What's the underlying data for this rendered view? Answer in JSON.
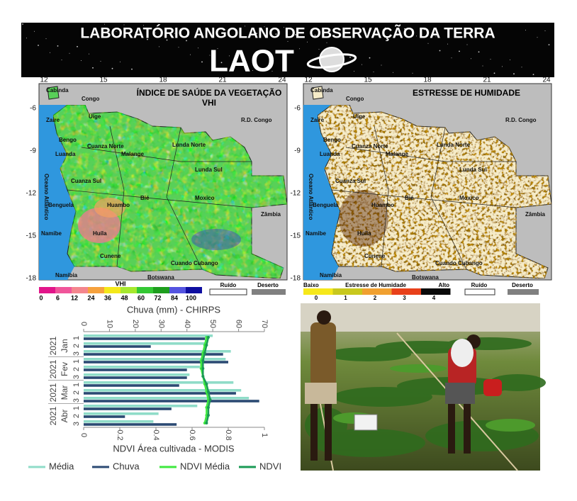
{
  "header": {
    "title": "LABORATÓRIO ANGOLANO DE OBSERVAÇÃO DA TERRA",
    "logo": "LAOT"
  },
  "maps": {
    "lon_ticks": [
      "12",
      "15",
      "18",
      "21",
      "24"
    ],
    "lat_ticks": [
      "-6",
      "-9",
      "-12",
      "-15",
      "-18"
    ],
    "places": [
      "Cabinda",
      "Congo",
      "Zaire",
      "Uíge",
      "Bengo",
      "Cuanza Norte",
      "Luanda",
      "Malange",
      "Lunda Norte",
      "Lunda Sul",
      "Cuanza Sul",
      "Benguela",
      "Huambo",
      "Bié",
      "Moxico",
      "Namibe",
      "Huíla",
      "Cunene",
      "Cuando Cubango",
      "Namibia",
      "Botswana",
      "R.D. Congo",
      "Zâmbia",
      "Oceano Atlântico"
    ],
    "vhi": {
      "title": "ÍNDICE DE SAÚDE DA VEGETAÇÃO",
      "subtitle": "VHI",
      "legend_title": "VHI",
      "legend_ticks": [
        "0",
        "6",
        "12",
        "24",
        "36",
        "48",
        "60",
        "72",
        "84",
        "100"
      ],
      "noise": "Ruído",
      "desert": "Deserto"
    },
    "stress": {
      "title": "ESTRESSE DE HUMIDADE",
      "low": "Baixo",
      "legend_title": "Estresse de Humidade",
      "high": "Alto",
      "legend_ticks": [
        "0",
        "1",
        "2",
        "3",
        "4"
      ],
      "noise": "Ruído",
      "desert": "Deserto"
    }
  },
  "chart_data": {
    "type": "hbar",
    "title": "Chuva (mm) - CHIRPS",
    "x2_title": "NDVI Área cultivada - MODIS",
    "categories": [
      "1",
      "2",
      "3",
      "1",
      "2",
      "3",
      "1",
      "2",
      "3",
      "1",
      "2",
      "3"
    ],
    "groups": [
      "Jan",
      "Fev",
      "Mar",
      "Abr"
    ],
    "year": "2021",
    "xlim": [
      0,
      70
    ],
    "xticks": [
      0,
      10,
      20,
      30,
      40,
      50,
      60,
      70
    ],
    "x2lim": [
      0,
      1
    ],
    "x2ticks": [
      0,
      0.2,
      0.4,
      0.6,
      0.8,
      1
    ],
    "series": [
      {
        "name": "Média",
        "color": "#8fdcc8",
        "kind": "bar",
        "values": [
          50,
          48,
          57,
          55,
          45,
          41,
          58,
          61,
          64,
          44,
          29,
          27
        ]
      },
      {
        "name": "Chuva",
        "color": "#2b4a73",
        "kind": "bar",
        "values": [
          47,
          26,
          54,
          56,
          40,
          40,
          37,
          59,
          68,
          34,
          16,
          36
        ]
      },
      {
        "name": "NDVI Média",
        "color": "#3ee83e",
        "kind": "line",
        "axis": "x2",
        "values": [
          0.68,
          0.67,
          0.66,
          0.65,
          0.65,
          0.66,
          0.67,
          0.68,
          0.69,
          0.68,
          0.68,
          0.67
        ]
      },
      {
        "name": "NDVI",
        "color": "#1a9a55",
        "kind": "line",
        "axis": "x2",
        "values": [
          0.69,
          0.68,
          0.67,
          0.66,
          0.66,
          0.66,
          0.68,
          0.69,
          0.7,
          0.69,
          0.69,
          0.68
        ]
      }
    ]
  }
}
